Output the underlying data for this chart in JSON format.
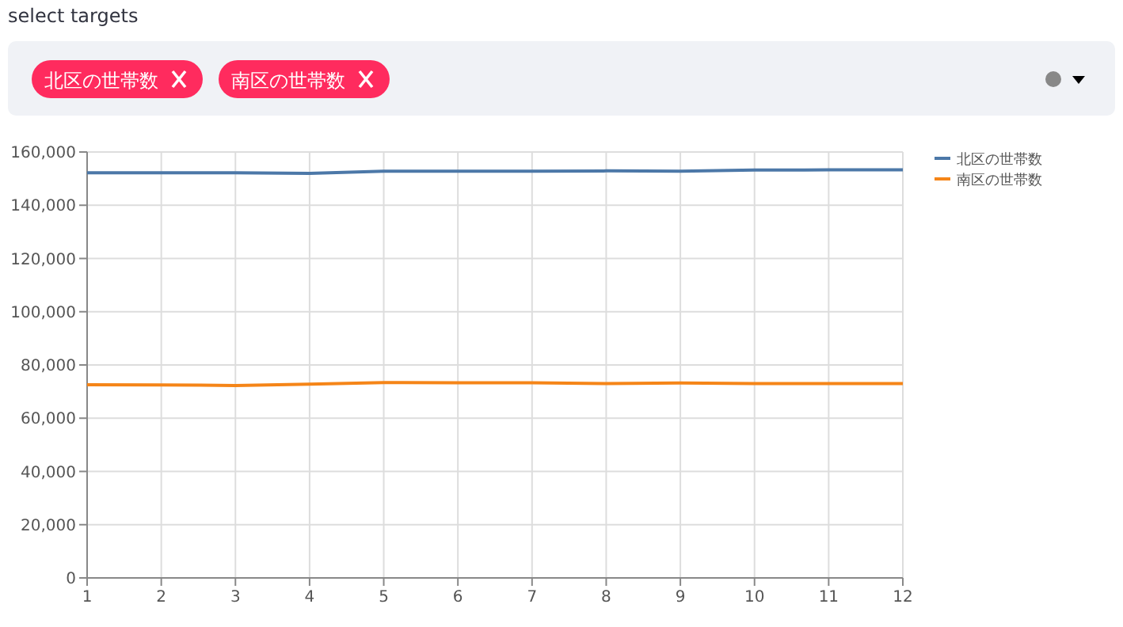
{
  "chart_data": {
    "type": "line",
    "title": "select targets",
    "annotations": [
      "北区の世帯数",
      "南区の世帯数"
    ],
    "x": [
      1,
      2,
      3,
      4,
      5,
      6,
      7,
      8,
      9,
      10,
      11,
      12
    ],
    "xlim": [
      1,
      12
    ],
    "xticks": [
      1,
      2,
      3,
      4,
      5,
      6,
      7,
      8,
      9,
      10,
      11,
      12
    ],
    "ylim": [
      0,
      160000
    ],
    "yticks": [
      {
        "value": 0,
        "label": "0"
      },
      {
        "value": 20000,
        "label": "20,000"
      },
      {
        "value": 40000,
        "label": "40,000"
      },
      {
        "value": 60000,
        "label": "60,000"
      },
      {
        "value": 80000,
        "label": "80,000"
      },
      {
        "value": 100000,
        "label": "100,000"
      },
      {
        "value": 120000,
        "label": "120,000"
      },
      {
        "value": 140000,
        "label": "140,000"
      },
      {
        "value": 160000,
        "label": "160,000"
      }
    ],
    "series": [
      {
        "name": "北区の世帯数",
        "color": "#4c78a8",
        "values": [
          152200,
          152200,
          152200,
          152000,
          152800,
          152800,
          152800,
          152900,
          152800,
          153200,
          153300,
          153300
        ]
      },
      {
        "name": "南区の世帯数",
        "color": "#f58518",
        "values": [
          72600,
          72500,
          72300,
          72800,
          73400,
          73300,
          73300,
          73000,
          73200,
          73000,
          73000,
          73000
        ]
      }
    ],
    "grid": true,
    "legend": "top right"
  }
}
